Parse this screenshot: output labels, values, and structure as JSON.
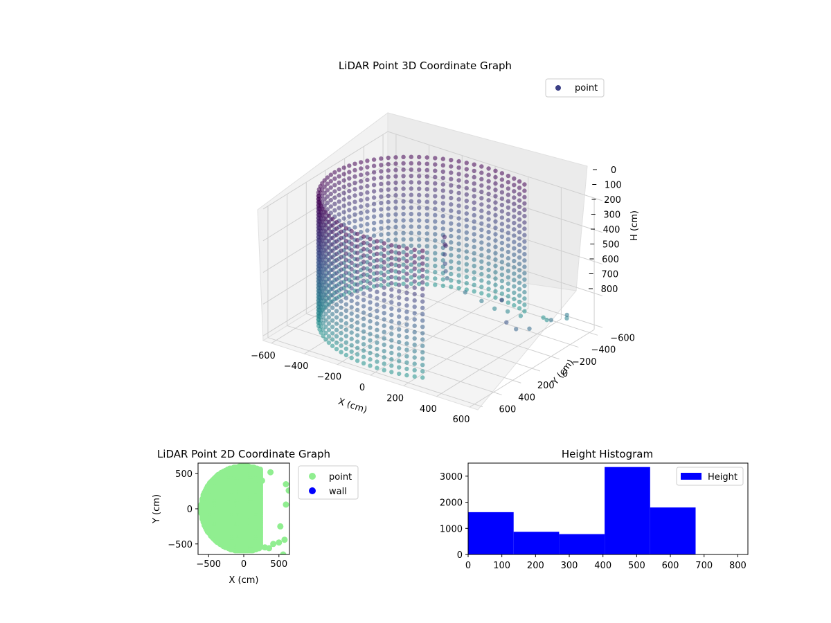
{
  "chart_data": [
    {
      "type": "scatter",
      "projection": "3d",
      "title": "LiDAR Point 3D Coordinate Graph",
      "xlabel": "X (cm)",
      "ylabel": "Y (cm)",
      "zlabel": "H (cm)",
      "xticks": [
        "−600",
        "−400",
        "−200",
        "0",
        "200",
        "400",
        "600"
      ],
      "yticks": [
        "−600",
        "−400",
        "−200",
        "0",
        "200",
        "400",
        "600"
      ],
      "zticks": [
        "0",
        "100",
        "200",
        "300",
        "400",
        "500",
        "600",
        "700",
        "800"
      ],
      "xlim": [
        -650,
        650
      ],
      "ylim": [
        -650,
        650
      ],
      "zlim": [
        0,
        830
      ],
      "z_inverted": true,
      "grid": true,
      "legend": {
        "position": "upper-right",
        "entries": [
          "point"
        ]
      },
      "colormap": "viridis (color by height)",
      "series": [
        {
          "name": "point",
          "description": "curved wall of points, radius ~600 cm, spanning x from −600 to ~250, heights 0–800, plus interior cluster and scattered points",
          "wall_radius": 600,
          "wall_angle_range_deg": [
            65,
            295
          ],
          "height_range": [
            0,
            800
          ],
          "interior_cluster": [
            {
              "x": 100,
              "y": 50,
              "h": 150
            },
            {
              "x": 120,
              "y": 80,
              "h": 180
            },
            {
              "x": 90,
              "y": 20,
              "h": 220
            },
            {
              "x": 60,
              "y": -20,
              "h": 300
            },
            {
              "x": 40,
              "y": -60,
              "h": 380
            },
            {
              "x": 20,
              "y": -100,
              "h": 450
            },
            {
              "x": 0,
              "y": -150,
              "h": 520
            },
            {
              "x": 80,
              "y": -200,
              "h": 600
            },
            {
              "x": 150,
              "y": -250,
              "h": 650
            },
            {
              "x": 200,
              "y": -300,
              "h": 700
            },
            {
              "x": 250,
              "y": -350,
              "h": 720
            },
            {
              "x": 300,
              "y": -400,
              "h": 750
            }
          ],
          "outliers": [
            {
              "x": 620,
              "y": 350,
              "h": 260
            },
            {
              "x": 620,
              "y": 300,
              "h": 420
            },
            {
              "x": 620,
              "y": 200,
              "h": 500
            },
            {
              "x": 620,
              "y": 60,
              "h": 550
            },
            {
              "x": 600,
              "y": -200,
              "h": 600
            },
            {
              "x": 580,
              "y": -400,
              "h": 650
            },
            {
              "x": 550,
              "y": -450,
              "h": 700
            },
            {
              "x": 400,
              "y": -500,
              "h": 780
            },
            {
              "x": 350,
              "y": -550,
              "h": 800
            }
          ]
        }
      ]
    },
    {
      "type": "scatter",
      "title": "LiDAR Point 2D Coordinate Graph",
      "xlabel": "X (cm)",
      "ylabel": "Y (cm)",
      "xticks": [
        "−500",
        "0",
        "500"
      ],
      "yticks": [
        "−500",
        "0",
        "500"
      ],
      "xlim": [
        -650,
        650
      ],
      "ylim": [
        -650,
        650
      ],
      "legend": {
        "position": "outside-right",
        "entries": [
          "point",
          "wall"
        ]
      },
      "series": [
        {
          "name": "point",
          "color": "#90ee90",
          "description": "filled half-disc x ≤ ~250 within radius 600",
          "outliers": [
            {
              "x": 380,
              "y": 520
            },
            {
              "x": 260,
              "y": 400
            },
            {
              "x": 600,
              "y": 350
            },
            {
              "x": 640,
              "y": 260
            },
            {
              "x": 600,
              "y": 60
            },
            {
              "x": 520,
              "y": -250
            },
            {
              "x": 580,
              "y": -440
            },
            {
              "x": 500,
              "y": -480
            },
            {
              "x": 420,
              "y": -500
            },
            {
              "x": 300,
              "y": -550
            },
            {
              "x": 360,
              "y": -560
            },
            {
              "x": 560,
              "y": -650
            }
          ]
        },
        {
          "name": "wall",
          "color": "#0000ff",
          "values": []
        }
      ]
    },
    {
      "type": "bar",
      "subtype": "histogram",
      "title": "Height Histogram",
      "xlabel": "",
      "ylabel": "",
      "color": "#0000ff",
      "xticks": [
        "0",
        "100",
        "200",
        "300",
        "400",
        "500",
        "600",
        "700",
        "800"
      ],
      "yticks": [
        "0",
        "1000",
        "2000",
        "3000"
      ],
      "xlim": [
        0,
        830
      ],
      "ylim": [
        0,
        3500
      ],
      "legend": {
        "position": "upper-right",
        "entries": [
          "Height"
        ]
      },
      "series": [
        {
          "name": "Height",
          "bins": [
            0,
            135,
            270,
            405,
            540,
            675,
            810
          ],
          "values": [
            1620,
            870,
            780,
            3350,
            1800,
            0
          ]
        }
      ]
    }
  ]
}
